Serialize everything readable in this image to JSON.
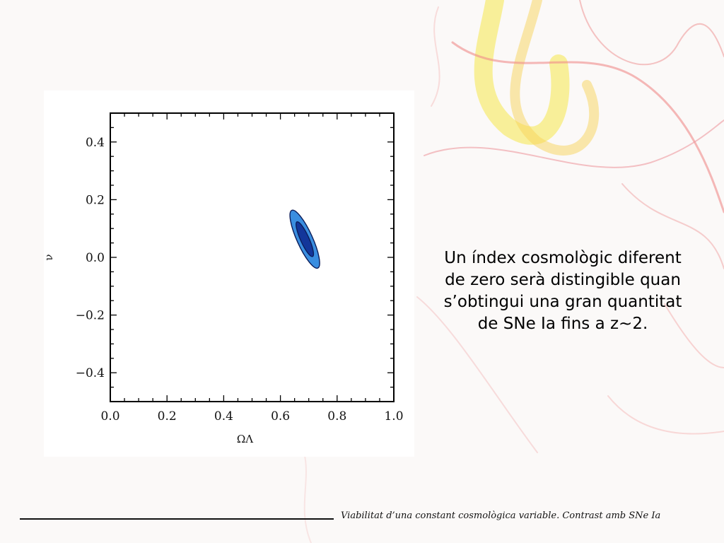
{
  "slide": {
    "caption": "Un índex cosmològic diferent de zero serà distingible quan s’obtingui una gran quantitat de SNe Ia fins a z~2.",
    "footer": "Viabilitat d’una constant cosmològica variable. Contrast amb SNe Ia"
  },
  "chart_data": {
    "type": "contour",
    "xlabel": "ΩΛ",
    "ylabel": "ν",
    "xlim": [
      0.0,
      1.0
    ],
    "ylim": [
      -0.5,
      0.5
    ],
    "x_ticks": [
      "0.0",
      "0.2",
      "0.4",
      "0.6",
      "0.8",
      "1.0"
    ],
    "y_ticks": [
      "0.4",
      "0.2",
      "0.0",
      "−0.2",
      "−0.4"
    ],
    "y_tick_values": [
      0.4,
      0.2,
      0.0,
      -0.2,
      -0.4
    ],
    "grid": false,
    "contours": [
      {
        "level": "outer",
        "color": "#3a8ee0",
        "center": [
          0.686,
          0.063
        ],
        "points": [
          [
            0.641,
            0.163
          ],
          [
            0.733,
            -0.037
          ]
        ]
      },
      {
        "level": "inner",
        "color": "#13369a",
        "center": [
          0.686,
          0.063
        ],
        "points": [
          [
            0.656,
            0.123
          ],
          [
            0.711,
            0.003
          ]
        ]
      }
    ]
  }
}
